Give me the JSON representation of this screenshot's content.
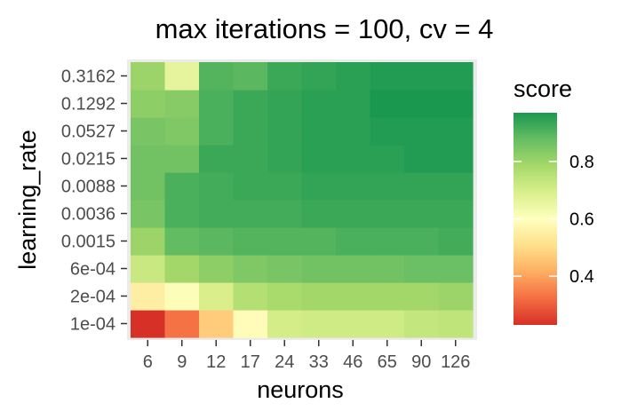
{
  "chart_data": {
    "type": "heatmap",
    "title": "max iterations = 100, cv = 4",
    "xlabel": "neurons",
    "ylabel": "learning_rate",
    "x": [
      "6",
      "9",
      "12",
      "17",
      "24",
      "33",
      "46",
      "65",
      "90",
      "126"
    ],
    "y": [
      "1e-04",
      "2e-04",
      "6e-04",
      "0.0015",
      "0.0036",
      "0.0088",
      "0.0215",
      "0.0527",
      "0.1292",
      "0.3162"
    ],
    "values": [
      [
        0.23,
        0.33,
        0.47,
        0.59,
        0.7,
        0.71,
        0.71,
        0.71,
        0.73,
        0.74
      ],
      [
        0.55,
        0.61,
        0.69,
        0.76,
        0.78,
        0.79,
        0.79,
        0.79,
        0.79,
        0.8
      ],
      [
        0.72,
        0.79,
        0.82,
        0.84,
        0.85,
        0.86,
        0.86,
        0.86,
        0.87,
        0.87
      ],
      [
        0.8,
        0.88,
        0.89,
        0.9,
        0.9,
        0.9,
        0.91,
        0.91,
        0.91,
        0.92
      ],
      [
        0.85,
        0.91,
        0.92,
        0.92,
        0.92,
        0.93,
        0.93,
        0.93,
        0.93,
        0.93
      ],
      [
        0.86,
        0.91,
        0.92,
        0.93,
        0.93,
        0.94,
        0.94,
        0.94,
        0.94,
        0.94
      ],
      [
        0.86,
        0.86,
        0.93,
        0.93,
        0.94,
        0.95,
        0.95,
        0.95,
        0.96,
        0.96
      ],
      [
        0.85,
        0.84,
        0.91,
        0.93,
        0.94,
        0.95,
        0.95,
        0.96,
        0.96,
        0.96
      ],
      [
        0.82,
        0.83,
        0.91,
        0.93,
        0.94,
        0.95,
        0.95,
        0.97,
        0.97,
        0.97
      ],
      [
        0.8,
        0.66,
        0.9,
        0.89,
        0.93,
        0.94,
        0.95,
        0.96,
        0.96,
        0.96
      ]
    ],
    "legend": {
      "title": "score",
      "ticks": [
        0.4,
        0.6,
        0.8
      ],
      "tick_labels": [
        "0.4",
        "0.6",
        "0.8"
      ],
      "range": [
        0.23,
        0.97
      ],
      "position": "right"
    },
    "colorscale": [
      "#d73027",
      "#f46d43",
      "#fdae61",
      "#fee08b",
      "#ffffbf",
      "#d9ef8b",
      "#a6d96a",
      "#66bd63",
      "#1a9850"
    ],
    "panel_background": "#ebebeb",
    "grid": false
  }
}
